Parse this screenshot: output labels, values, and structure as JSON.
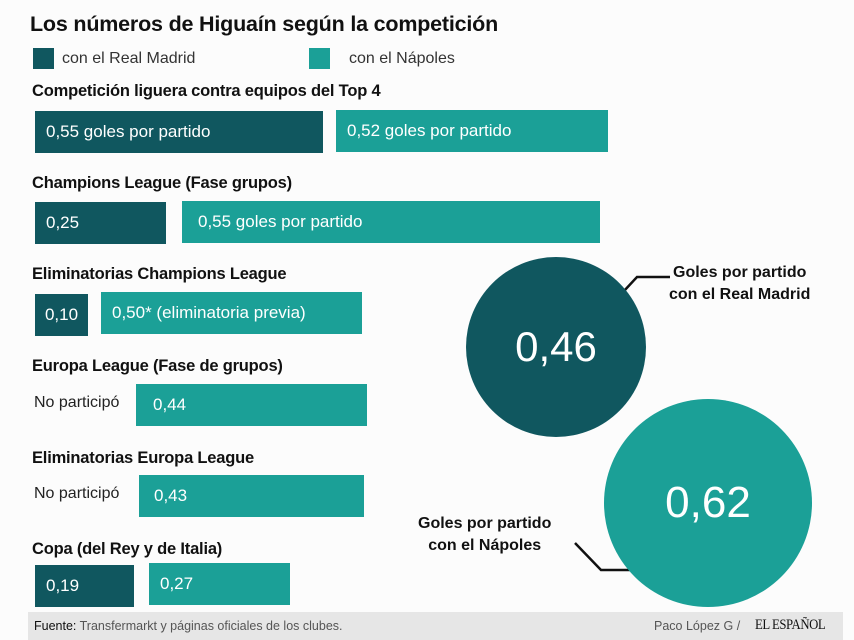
{
  "title": "Los números de Higuaín según la competición",
  "legend": [
    {
      "label": "con el Real Madrid",
      "color": "#10575f"
    },
    {
      "label": "con el Nápoles",
      "color": "#1ba097"
    }
  ],
  "colors": {
    "real_madrid": "#10575f",
    "napoles": "#1ba097",
    "background": "#fcfcfc",
    "footer": "#e6e6e6"
  },
  "no_participation_label": "No participó",
  "chart_data": {
    "type": "bar",
    "title": "Los números de Higuaín según la competición",
    "xlabel": "",
    "ylabel": "Goles por partido",
    "categories": [
      "Competición liguera contra equipos del Top 4",
      "Champions League (Fase grupos)",
      "Eliminatorias Champions League",
      "Europa League (Fase de grupos)",
      "Eliminatorias Europa League",
      "Copa (del Rey y de Italia)"
    ],
    "series": [
      {
        "name": "con el Real Madrid",
        "values": [
          0.55,
          0.25,
          0.1,
          null,
          null,
          0.19
        ]
      },
      {
        "name": "con el Nápoles",
        "values": [
          0.52,
          0.55,
          0.5,
          0.44,
          0.43,
          0.27
        ]
      }
    ],
    "data_labels": {
      "real_madrid": [
        "0,55 goles por partido",
        "0,25",
        "0,10",
        "No participó",
        "No participó",
        "0,19"
      ],
      "napoles": [
        "0,52 goles por partido",
        "0,55 goles por partido",
        "0,50* (eliminatoria previa)",
        "0,44",
        "0,43",
        "0,27"
      ]
    },
    "legend_position": "top-left",
    "grid": false,
    "totals": [
      {
        "series": "con el Real Madrid",
        "value": 0.46,
        "display": "0,46",
        "label_line1": "Goles por partido",
        "label_line2": "con el Real Madrid"
      },
      {
        "series": "con el Nápoles",
        "value": 0.62,
        "display": "0,62",
        "label_line1": "Goles por partido",
        "label_line2": "con el Nápoles"
      }
    ]
  },
  "footer": {
    "source_label": "Fuente:",
    "source_text": "Transfermarkt y páginas oficiales de los clubes.",
    "author": "Paco López G  /",
    "brand": "EL ESPAÑOL"
  }
}
